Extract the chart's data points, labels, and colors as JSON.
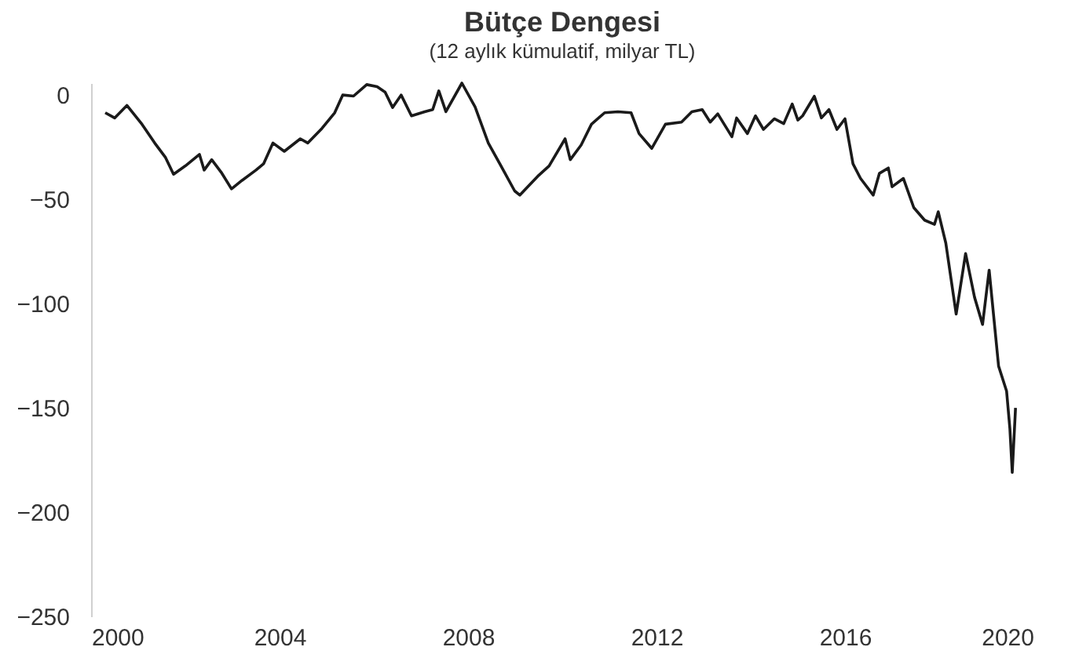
{
  "chart_data": {
    "type": "line",
    "title": "Bütçe Dengesi",
    "subtitle": "(12 aylık kümulatif, milyar TL)",
    "x": [
      2000.3,
      2000.5,
      2000.76,
      2001.08,
      2001.35,
      2001.58,
      2001.75,
      2002.0,
      2002.3,
      2002.4,
      2002.56,
      2002.76,
      2002.98,
      2003.2,
      2003.5,
      2003.66,
      2003.86,
      2004.1,
      2004.44,
      2004.6,
      2004.9,
      2005.17,
      2005.34,
      2005.57,
      2005.85,
      2006.07,
      2006.24,
      2006.4,
      2006.58,
      2006.8,
      2007.08,
      2007.25,
      2007.38,
      2007.53,
      2007.87,
      2008.15,
      2008.43,
      2008.7,
      2008.99,
      2009.1,
      2009.5,
      2009.72,
      2010.06,
      2010.17,
      2010.4,
      2010.62,
      2010.9,
      2011.18,
      2011.46,
      2011.63,
      2011.9,
      2012.19,
      2012.53,
      2012.75,
      2012.97,
      2013.14,
      2013.3,
      2013.6,
      2013.7,
      2013.93,
      2014.1,
      2014.27,
      2014.5,
      2014.7,
      2014.88,
      2015.0,
      2015.1,
      2015.35,
      2015.5,
      2015.66,
      2015.83,
      2016.0,
      2016.17,
      2016.33,
      2016.6,
      2016.73,
      2016.92,
      2017.0,
      2017.24,
      2017.46,
      2017.69,
      2017.9,
      2017.98,
      2018.14,
      2018.36,
      2018.56,
      2018.75,
      2018.92,
      2019.06,
      2019.26,
      2019.43,
      2019.5,
      2019.55,
      2019.62
    ],
    "series": [
      {
        "color": "#1a1a1a",
        "values": [
          -8.5,
          -11,
          -5,
          -14,
          -23,
          -30,
          -38,
          -34,
          -28.5,
          -36,
          -31,
          -37,
          -45,
          -41,
          -36,
          -33,
          -23,
          -27,
          -21,
          -23,
          -16,
          -8.5,
          0,
          -0.5,
          5,
          4,
          1.4,
          -6,
          0,
          -10,
          -8,
          -7,
          2,
          -8,
          5.7,
          -5.7,
          -23,
          -34,
          -46,
          -48,
          -38.5,
          -34,
          -21,
          -31,
          -24,
          -14,
          -8.5,
          -8,
          -8.5,
          -18.5,
          -25.6,
          -14,
          -13,
          -8,
          -7,
          -13,
          -9,
          -20,
          -11,
          -18.5,
          -10,
          -16.5,
          -11.4,
          -13.7,
          -4.3,
          -12,
          -10,
          -0.6,
          -11,
          -7,
          -16.5,
          -11.4,
          -33,
          -40,
          -48,
          -37.6,
          -35,
          -44,
          -40,
          -54,
          -60,
          -62,
          -56,
          -71,
          -105,
          -76,
          -97,
          -110,
          -84,
          -130,
          -142,
          -160,
          -181,
          -150
        ]
      }
    ],
    "xlim": [
      2000,
      2020
    ],
    "xticks": [
      2000,
      2004,
      2008,
      2012,
      2016,
      2020
    ],
    "ylim": [
      -250,
      5.7
    ],
    "yticks": [
      0,
      -50,
      -100,
      -150,
      -200,
      -250
    ],
    "grid": false,
    "legend": false,
    "marker": "none",
    "line_style": "solid"
  }
}
